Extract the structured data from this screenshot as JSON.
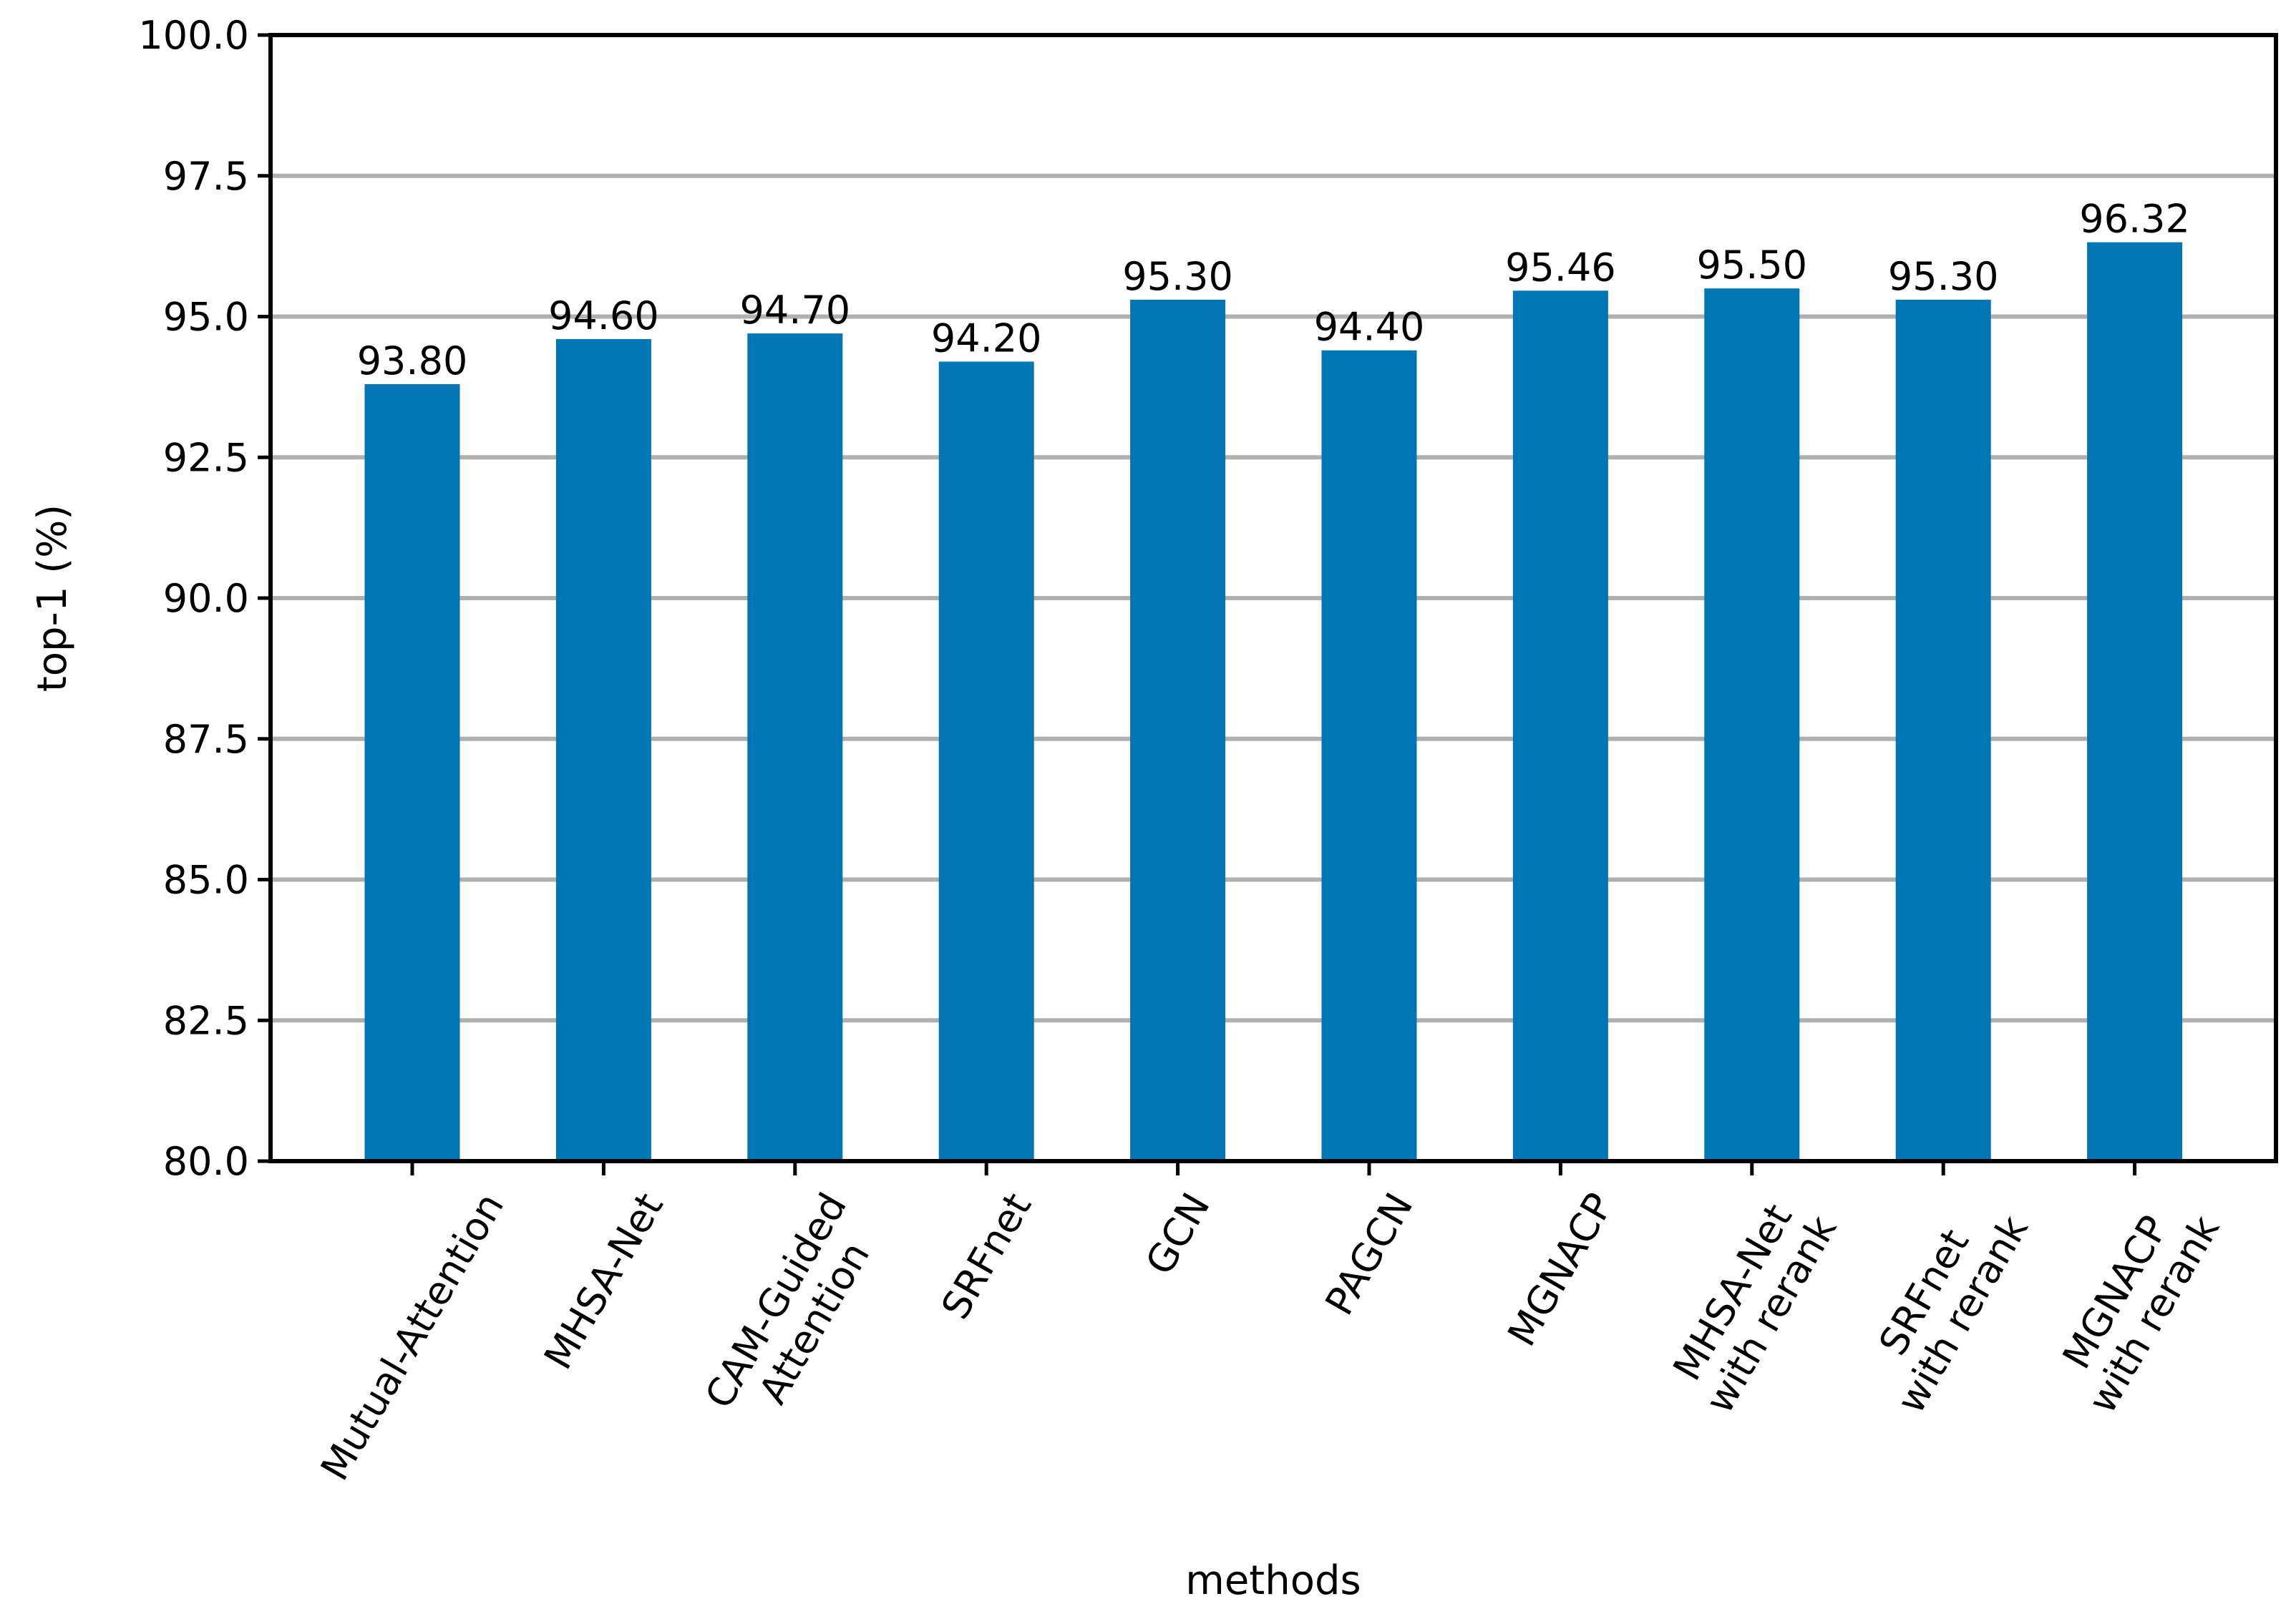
{
  "chart_data": {
    "type": "bar",
    "categories": [
      "Mutual-Attention",
      "MHSA-Net",
      "CAM-Guided\nAttention",
      "SRFnet",
      "GCN",
      "PAGCN",
      "MGNACP",
      "MHSA-Net\nwith rerank",
      "SRFnet\nwith rerank",
      "MGNACP\nwith rerank"
    ],
    "values": [
      93.8,
      94.6,
      94.7,
      94.2,
      95.3,
      94.4,
      95.46,
      95.5,
      95.3,
      96.32
    ],
    "value_labels": [
      "93.80",
      "94.60",
      "94.70",
      "94.20",
      "95.30",
      "94.40",
      "95.46",
      "95.50",
      "95.30",
      "96.32"
    ],
    "title": "",
    "xlabel": "methods",
    "ylabel": "top-1 (%)",
    "ylim": [
      80,
      100
    ],
    "yticks": [
      "80.0",
      "82.5",
      "85.0",
      "87.5",
      "90.0",
      "92.5",
      "95.0",
      "97.5",
      "100.0"
    ],
    "grid": "y",
    "bar_color": "#0176b5",
    "grid_color": "#b0b0b0"
  }
}
